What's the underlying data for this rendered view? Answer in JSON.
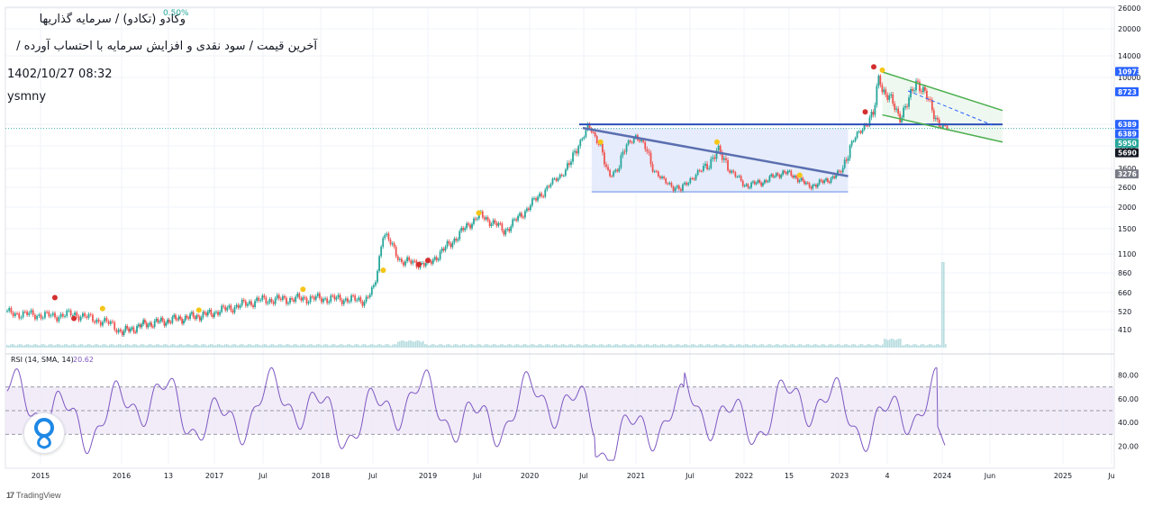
{
  "header": {
    "title": "وکادو (تکادو) / سرمایه گذاریها",
    "change": "0.50%",
    "subtitle": "آخرین قیمت / سود نقدی و افزایش سرمایه با احتساب آورده /",
    "datetime": "1402/10/27 08:32",
    "author": "ysmny"
  },
  "brand": {
    "name": "TradingView",
    "logo_icon": "tradingview-logo-icon"
  },
  "colors": {
    "up": "#26a69a",
    "down": "#ef5350",
    "trendline": "#5b6fb0",
    "support": "#2a4fb8",
    "channel": "#4caf50",
    "rsi_line": "#7e57c2",
    "rsi_band": "#ede7f6",
    "volume": "#b7dde0",
    "marker_yellow": "#f5c518",
    "marker_red": "#d32f2f"
  },
  "chart_data": {
    "type": "candlestick",
    "scale": "log",
    "ylim": [
      350,
      26000
    ],
    "ytick_labels": [
      "26000",
      "20000",
      "14000",
      "10000",
      "6400",
      "4400",
      "3600",
      "2600",
      "2000",
      "1500",
      "1100",
      "860",
      "660",
      "520",
      "410"
    ],
    "xtick_labels": [
      "2015",
      "2016",
      "13",
      "2017",
      "Jul",
      "2018",
      "Jul",
      "2019",
      "Jul",
      "2020",
      "Jul",
      "2021",
      "Jul",
      "2022",
      "15",
      "2023",
      "4",
      "2024",
      "Jun",
      "2025",
      "Ju"
    ],
    "price_anchors": [
      [
        "2015-01",
        510
      ],
      [
        "2015-06",
        490
      ],
      [
        "2015-08",
        505
      ],
      [
        "2015-12",
        440
      ],
      [
        "2016-01",
        395
      ],
      [
        "2016-04",
        440
      ],
      [
        "2016-08",
        470
      ],
      [
        "2016-12",
        500
      ],
      [
        "2017-06",
        600
      ],
      [
        "2017-12",
        615
      ],
      [
        "2018-03",
        610
      ],
      [
        "2018-06",
        600
      ],
      [
        "2018-07",
        700
      ],
      [
        "2018-08",
        1450
      ],
      [
        "2018-10",
        1000
      ],
      [
        "2019-01",
        960
      ],
      [
        "2019-04",
        1300
      ],
      [
        "2019-07",
        1800
      ],
      [
        "2019-09",
        1600
      ],
      [
        "2019-10",
        1450
      ],
      [
        "2019-12",
        1800
      ],
      [
        "2020-03",
        2600
      ],
      [
        "2020-06",
        4000
      ],
      [
        "2020-07-20",
        6100
      ],
      [
        "2020-09",
        4500
      ],
      [
        "2020-10",
        3100
      ],
      [
        "2021-01",
        5300
      ],
      [
        "2021-04",
        2900
      ],
      [
        "2021-06",
        2500
      ],
      [
        "2021-07",
        3000
      ],
      [
        "2021-10",
        4200
      ],
      [
        "2021-11",
        3800
      ],
      [
        "2022-01",
        2700
      ],
      [
        "2022-03",
        2800
      ],
      [
        "2022-06",
        3400
      ],
      [
        "2022-08",
        3000
      ],
      [
        "2022-09",
        2650
      ],
      [
        "2022-11",
        2850
      ],
      [
        "2023-01",
        3300
      ],
      [
        "2023-02",
        4200
      ],
      [
        "2023-03",
        5200
      ],
      [
        "2023-04",
        6400
      ],
      [
        "2023-05",
        7000
      ],
      [
        "2023-05-20",
        10500
      ],
      [
        "2023-06",
        9000
      ],
      [
        "2023-07",
        8000
      ],
      [
        "2023-08",
        6900
      ],
      [
        "2023-09",
        7800
      ],
      [
        "2023-10",
        9800
      ],
      [
        "2023-11",
        8500
      ],
      [
        "2023-12",
        7200
      ],
      [
        "2024-01",
        6000
      ],
      [
        "2024-01-16",
        5950
      ]
    ],
    "price_labels": [
      {
        "text": "10973",
        "value": 10973,
        "bg": "#2962ff"
      },
      {
        "text": "8723",
        "value": 8723,
        "bg": "#2962ff"
      },
      {
        "text": "6389",
        "value": 6389,
        "bg": "#2962ff"
      },
      {
        "text": "6389",
        "value": 6389,
        "bg": "#2962ff"
      },
      {
        "text": "5950",
        "value": 5950,
        "bg": "#26a69a"
      },
      {
        "text": "5690",
        "value": 5690,
        "bg": "#131722"
      },
      {
        "text": "3276",
        "value": 3276,
        "bg": "#787b86"
      }
    ],
    "drawings": {
      "support_line": {
        "value": 6389,
        "from": "2020-07",
        "to": "2024-07"
      },
      "descending_trendline": {
        "from": [
          "2020-07",
          6000
        ],
        "to": [
          "2023-02",
          3150
        ]
      },
      "triangle_box": {
        "from": "2020-08",
        "to": "2023-02",
        "ylim": [
          2450,
          6000
        ]
      },
      "channel_upper": {
        "from": [
          "2023-06",
          10900
        ],
        "to": [
          "2024-07",
          7300
        ]
      },
      "channel_lower": {
        "from": [
          "2023-06",
          7000
        ],
        "to": [
          "2024-07",
          4700
        ]
      },
      "projection": {
        "from": [
          "2023-09",
          8800
        ],
        "to": [
          "2024-06",
          6300
        ]
      }
    },
    "markers": [
      {
        "date": "2015-06",
        "value": 620,
        "color": "#d32f2f"
      },
      {
        "date": "2015-08",
        "value": 475,
        "color": "#d32f2f"
      },
      {
        "date": "2015-11",
        "value": 540,
        "color": "#f5c518"
      },
      {
        "date": "2016-11",
        "value": 530,
        "color": "#f5c518"
      },
      {
        "date": "2017-11",
        "value": 690,
        "color": "#f5c518"
      },
      {
        "date": "2018-08",
        "value": 890,
        "color": "#f5c518"
      },
      {
        "date": "2018-12",
        "value": 960,
        "color": "#d32f2f"
      },
      {
        "date": "2019-01",
        "value": 1010,
        "color": "#d32f2f"
      },
      {
        "date": "2019-07",
        "value": 1850,
        "color": "#f5c518"
      },
      {
        "date": "2020-09",
        "value": 4700,
        "color": "#f5c518"
      },
      {
        "date": "2021-10",
        "value": 4700,
        "color": "#f5c518"
      },
      {
        "date": "2022-08",
        "value": 3200,
        "color": "#f5c518"
      },
      {
        "date": "2023-04",
        "value": 7200,
        "color": "#d32f2f"
      },
      {
        "date": "2023-05",
        "value": 11800,
        "color": "#d32f2f"
      },
      {
        "date": "2023-06",
        "value": 11200,
        "color": "#f5c518"
      }
    ],
    "rsi": {
      "label": "RSI (14, SMA, 14)",
      "last_value": "20.62",
      "ylim": [
        5,
        95
      ],
      "tick_labels": [
        "80.00",
        "60.00",
        "40.00",
        "20.00"
      ],
      "band": [
        30,
        70
      ],
      "midline": 50
    }
  }
}
